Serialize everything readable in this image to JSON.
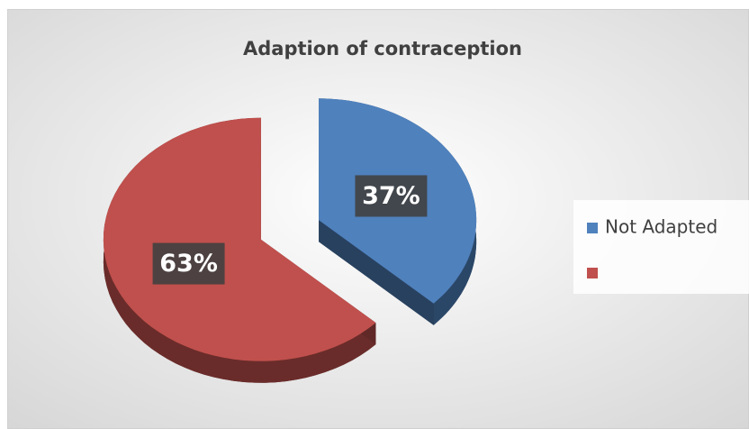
{
  "chart_data": {
    "type": "pie",
    "title": "Adaption of contraception",
    "categories": [
      "Not Adapted",
      null
    ],
    "values": [
      37,
      63
    ],
    "value_labels": [
      "37%",
      "63%"
    ],
    "colors": [
      "#4f81bd",
      "#c0504d"
    ],
    "legend": "right"
  }
}
